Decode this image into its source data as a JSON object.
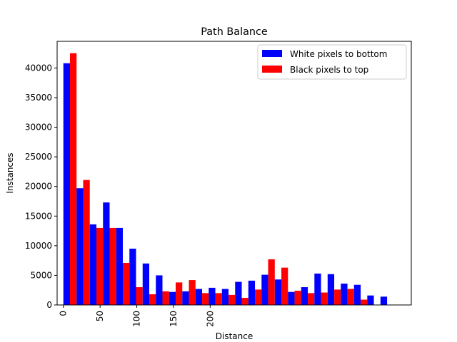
{
  "chart_data": {
    "type": "bar",
    "title": "Path Balance",
    "xlabel": "Distance",
    "ylabel": "Instances",
    "x_ticks": [
      0,
      50,
      100,
      150,
      200
    ],
    "y_ticks": [
      0,
      5000,
      10000,
      15000,
      20000,
      25000,
      30000,
      35000,
      40000
    ],
    "ylim": [
      0,
      44500
    ],
    "xlim": [
      -8.5,
      474
    ],
    "grid": false,
    "legend_position": "top-right",
    "bin_centers": [
      9,
      27,
      45,
      63,
      81,
      99,
      117,
      135,
      153,
      171,
      189,
      207,
      225,
      243,
      261,
      279,
      297,
      315,
      333,
      351,
      369,
      387,
      405,
      423,
      441
    ],
    "series": [
      {
        "name": "White pixels to bottom",
        "color": "#0000ff",
        "values": [
          40800,
          19700,
          13600,
          17300,
          13000,
          9500,
          7000,
          5000,
          2200,
          2300,
          2700,
          2900,
          2700,
          3900,
          4100,
          5100,
          4300,
          2200,
          3000,
          5300,
          5200,
          3600,
          3400,
          1600,
          1400
        ]
      },
      {
        "name": "Black pixels to top",
        "color": "#ff0000",
        "values": [
          42500,
          21100,
          13000,
          13000,
          7100,
          3000,
          1800,
          2300,
          3800,
          4200,
          2000,
          2000,
          1700,
          1200,
          2600,
          7700,
          6300,
          2400,
          2000,
          2100,
          2600,
          2700,
          900,
          0,
          0
        ]
      }
    ]
  }
}
